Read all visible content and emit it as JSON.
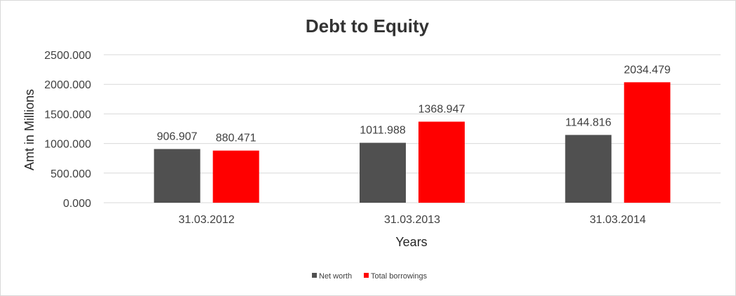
{
  "chart_data": {
    "type": "bar",
    "title": "Debt to Equity",
    "xlabel": "Years",
    "ylabel": "Amt in Millions",
    "categories": [
      "31.03.2012",
      "31.03.2013",
      "31.03.2014"
    ],
    "series": [
      {
        "name": "Net worth",
        "color": "#505050",
        "values": [
          906.907,
          1011.988,
          1144.816
        ]
      },
      {
        "name": "Total borrowings",
        "color": "#ff0000",
        "values": [
          880.471,
          1368.947,
          2034.479
        ]
      }
    ],
    "ylim": [
      0,
      2500
    ],
    "yticks": [
      0,
      500,
      1000,
      1500,
      2000,
      2500
    ],
    "ytick_labels": [
      "0.000",
      "500.000",
      "1000.000",
      "1500.000",
      "2000.000",
      "2500.000"
    ],
    "value_labels": [
      [
        "906.907",
        "1011.988",
        "1144.816"
      ],
      [
        "880.471",
        "1368.947",
        "2034.479"
      ]
    ],
    "grid": true,
    "legend_position": "bottom"
  }
}
